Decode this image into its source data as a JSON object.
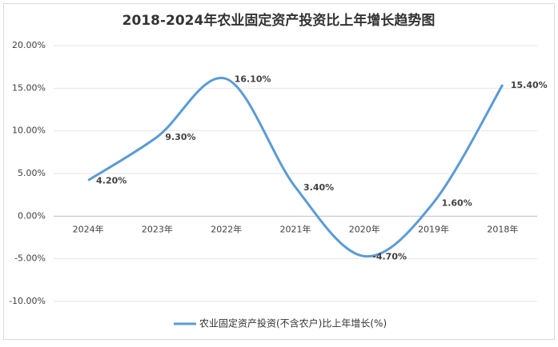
{
  "chart_data": {
    "type": "line",
    "title": "2018-2024年农业固定资产投资比上年增长趋势图",
    "categories": [
      "2024年",
      "2023年",
      "2022年",
      "2021年",
      "2020年",
      "2019年",
      "2018年"
    ],
    "series": [
      {
        "name": "农业固定资产投资(不含农户)比上年增长(%)",
        "color": "#5b9bd5",
        "values": [
          4.2,
          9.3,
          16.1,
          3.4,
          -4.7,
          1.6,
          15.4
        ],
        "value_labels": [
          "4.20%",
          "9.30%",
          "16.10%",
          "3.40%",
          "-4.70%",
          "1.60%",
          "15.40%"
        ]
      }
    ],
    "ylim": [
      -10,
      20
    ],
    "yticks": [
      {
        "value": -10,
        "label": "-10.00%"
      },
      {
        "value": -5,
        "label": "-5.00%"
      },
      {
        "value": 0,
        "label": "0.00%"
      },
      {
        "value": 5,
        "label": "5.00%"
      },
      {
        "value": 10,
        "label": "10.00%"
      },
      {
        "value": 15,
        "label": "15.00%"
      },
      {
        "value": 20,
        "label": "20.00%"
      }
    ],
    "grid": true,
    "smooth": true,
    "legend": "bottom"
  }
}
